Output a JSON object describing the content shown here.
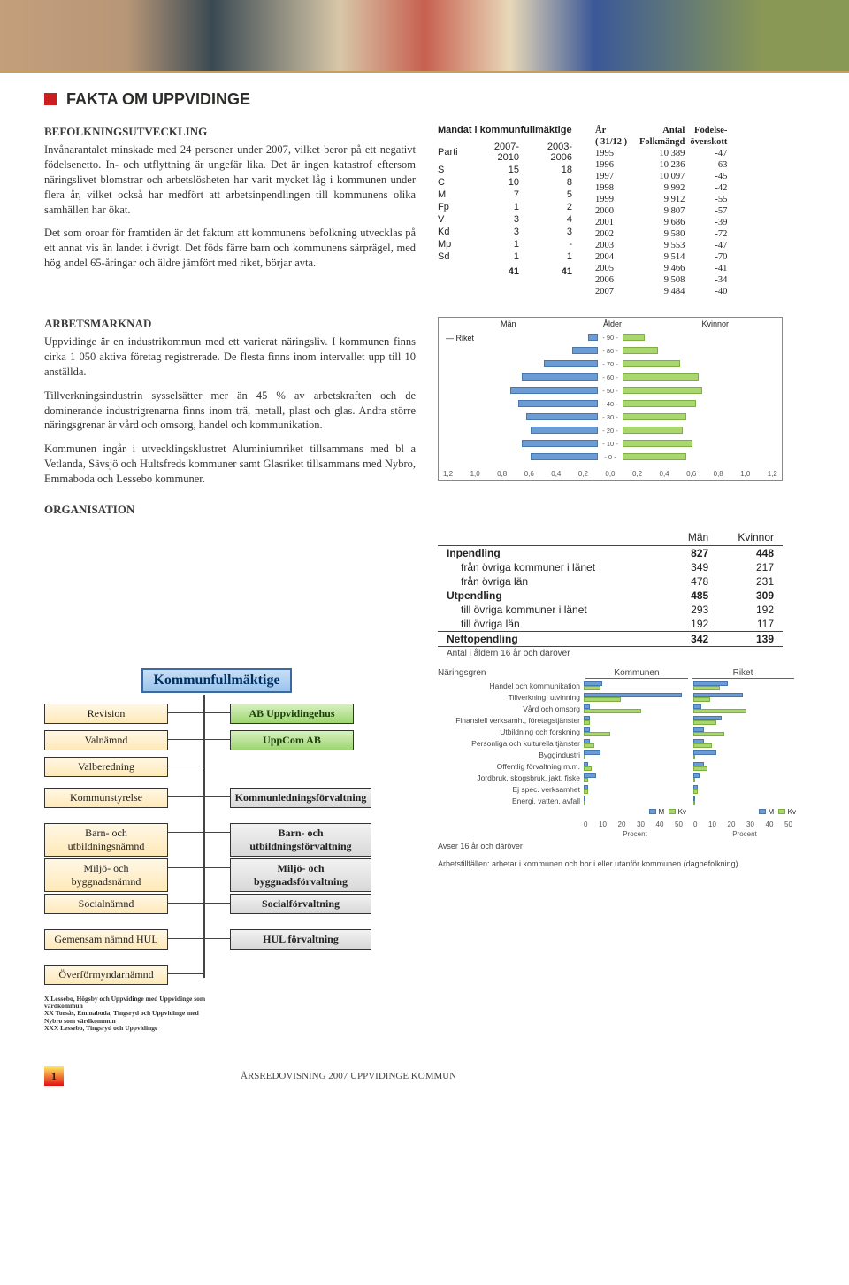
{
  "title": "FAKTA OM UPPVIDINGE",
  "sections": {
    "befolkning": {
      "heading": "BEFOLKNINGSUTVECKLING",
      "p1": "Invånarantalet minskade med 24 personer under 2007, vilket beror på ett negativt födelsenetto. In- och utflyttning är ungefär lika. Det är ingen katastrof eftersom näringslivet blomstrar och arbetslösheten har varit mycket låg i kommunen under flera år, vilket också har medfört att arbetsinpendlingen till kommunens olika samhällen har ökat.",
      "p2": "Det som oroar för framtiden är det faktum att kommunens befolkning utvecklas på ett annat vis än landet i övrigt. Det föds färre barn och kommunens särprägel, med hög andel 65-åringar och äldre jämfört med riket, börjar avta."
    },
    "arbetsmarknad": {
      "heading": "ARBETSMARKNAD",
      "p1": "Uppvidinge är en industrikommun med ett varierat näringsliv. I kommunen finns cirka 1 050 aktiva företag registrerade. De flesta finns inom intervallet upp till 10 anställda.",
      "p2": "Tillverkningsindustrin sysselsätter mer än 45 % av arbetskraften och de dominerande industrigrenarna finns inom trä, metall, plast och glas. Andra större näringsgrenar är vård och omsorg, handel och kommunikation.",
      "p3": "Kommunen ingår i utvecklingsklustret Aluminiumriket tillsammans med bl a Vetlanda, Sävsjö och Hultsfreds kommuner samt Glasriket tillsammans med Nybro, Emmaboda och Lessebo kommuner."
    },
    "organisation": {
      "heading": "ORGANISATION"
    }
  },
  "mandat": {
    "title": "Mandat i kommunfullmäktige",
    "cols": [
      "Parti",
      "2007-2010",
      "2003-2006"
    ],
    "rows": [
      [
        "S",
        "15",
        "18"
      ],
      [
        "C",
        "10",
        "8"
      ],
      [
        "M",
        "7",
        "5"
      ],
      [
        "Fp",
        "1",
        "2"
      ],
      [
        "V",
        "3",
        "4"
      ],
      [
        "Kd",
        "3",
        "3"
      ],
      [
        "Mp",
        "1",
        "-"
      ],
      [
        "Sd",
        "1",
        "1"
      ]
    ],
    "total": [
      "",
      "41",
      "41"
    ]
  },
  "folkmangd": {
    "head": [
      "År",
      "Antal",
      "Födelse-"
    ],
    "sub": [
      "( 31/12 )",
      "Folkmängd",
      "överskott"
    ],
    "rows": [
      [
        "1995",
        "10 389",
        "-47"
      ],
      [
        "1996",
        "10 236",
        "-63"
      ],
      [
        "1997",
        "10 097",
        "-45"
      ],
      [
        "1998",
        "9 992",
        "-42"
      ],
      [
        "1999",
        "9 912",
        "-55"
      ],
      [
        "2000",
        "9 807",
        "-57"
      ],
      [
        "2001",
        "9 686",
        "-39"
      ],
      [
        "2002",
        "9 580",
        "-72"
      ],
      [
        "2003",
        "9 553",
        "-47"
      ],
      [
        "2004",
        "9 514",
        "-70"
      ],
      [
        "2005",
        "9 466",
        "-41"
      ],
      [
        "2006",
        "9 508",
        "-34"
      ],
      [
        "2007",
        "9 484",
        "-40"
      ]
    ]
  },
  "pyramid": {
    "top_labels": {
      "men": "Män",
      "age": "Ålder",
      "women": "Kvinnor"
    },
    "legend": "Riket",
    "ages": [
      "- 90 -",
      "- 80 -",
      "- 70 -",
      "- 60 -",
      "- 50 -",
      "- 40 -",
      "- 30 -",
      "- 20 -",
      "- 10 -",
      "- 0 -"
    ],
    "left_pct": [
      6,
      16,
      34,
      48,
      55,
      50,
      45,
      42,
      48,
      42
    ],
    "right_pct": [
      14,
      22,
      36,
      48,
      50,
      46,
      40,
      38,
      44,
      40
    ],
    "axis": [
      "1,2",
      "1,0",
      "0,8",
      "0,6",
      "0,4",
      "0,2",
      "0,0",
      "0,2",
      "0,4",
      "0,6",
      "0,8",
      "1,0",
      "1,2"
    ],
    "axis_unit": "%"
  },
  "pendling": {
    "cols": [
      "",
      "Män",
      "Kvinnor"
    ],
    "rows": [
      {
        "label": "Inpendling",
        "m": "827",
        "k": "448",
        "bold": true
      },
      {
        "label": "från övriga kommuner i länet",
        "m": "349",
        "k": "217",
        "ind": true
      },
      {
        "label": "från övriga län",
        "m": "478",
        "k": "231",
        "ind": true
      },
      {
        "label": "Utpendling",
        "m": "485",
        "k": "309",
        "bold": true
      },
      {
        "label": "till övriga kommuner i länet",
        "m": "293",
        "k": "192",
        "ind": true
      },
      {
        "label": "till övriga län",
        "m": "192",
        "k": "117",
        "ind": true
      },
      {
        "label": "Nettopendling",
        "m": "342",
        "k": "139",
        "bold": true,
        "line": true
      }
    ],
    "foot": "Antal i åldern 16 år och däröver"
  },
  "org": {
    "top": "Kommunfullmäktige",
    "left": [
      "Revision",
      "Valnämnd",
      "Valberedning",
      "Kommunstyrelse",
      "Barn- och utbildningsnämnd",
      "Miljö- och byggnadsnämnd",
      "Socialnämnd",
      "Gemensam nämnd HUL",
      "Överförmyndarnämnd"
    ],
    "right_green": [
      "AB Uppvidingehus",
      "UppCom AB"
    ],
    "right_grey": [
      "Kommunledningsförvaltning",
      "Barn- och utbildningsförvaltning",
      "Miljö- och byggnadsförvaltning",
      "Socialförvaltning",
      "HUL förvaltning"
    ],
    "foot": "X Lessebo, Högsby och Uppvidinge med Uppvidinge som värdkommun\nXX Torsås, Emmaboda, Tingsryd och Uppvidinge med Nybro som värdkommun\nXXX Lessebo, Tingsryd och Uppvidinge"
  },
  "naring": {
    "head_label": "Näringsgren",
    "head_cols": [
      "Kommunen",
      "Riket"
    ],
    "rows": [
      {
        "label": "Handel och kommunikation",
        "km": 9,
        "kk": 8,
        "rm": 17,
        "rk": 13
      },
      {
        "label": "Tillverkning, utvinning",
        "km": 48,
        "kk": 18,
        "rm": 24,
        "rk": 8
      },
      {
        "label": "Vård och omsorg",
        "km": 3,
        "kk": 28,
        "rm": 4,
        "rk": 26
      },
      {
        "label": "Finansiell verksamh., företagstjänster",
        "km": 3,
        "kk": 3,
        "rm": 14,
        "rk": 11
      },
      {
        "label": "Utbildning och forskning",
        "km": 3,
        "kk": 13,
        "rm": 5,
        "rk": 15
      },
      {
        "label": "Personliga och kulturella tjänster",
        "km": 3,
        "kk": 5,
        "rm": 5,
        "rk": 9
      },
      {
        "label": "Byggindustri",
        "km": 8,
        "kk": 1,
        "rm": 11,
        "rk": 1
      },
      {
        "label": "Offentlig förvaltning m.m.",
        "km": 2,
        "kk": 4,
        "rm": 5,
        "rk": 7
      },
      {
        "label": "Jordbruk, skogsbruk, jakt, fiske",
        "km": 6,
        "kk": 2,
        "rm": 3,
        "rk": 1
      },
      {
        "label": "Ej spec. verksamhet",
        "km": 2,
        "kk": 2,
        "rm": 2,
        "rk": 2
      },
      {
        "label": "Energi, vatten, avfall",
        "km": 1,
        "kk": 0.5,
        "rm": 1,
        "rk": 0.5
      }
    ],
    "legend": [
      "M",
      "Kv"
    ],
    "axis": [
      "0",
      "10",
      "20",
      "30",
      "40",
      "50"
    ],
    "axis_label": "Procent",
    "foot1": "Avser 16 år och däröver",
    "foot2": "Arbetstillfällen: arbetar i kommunen och bor i eller utanför kommunen (dagbefolkning)"
  },
  "footer": {
    "page": "1",
    "text": "ÅRSREDOVISNING 2007 UPPVIDINGE KOMMUN"
  }
}
